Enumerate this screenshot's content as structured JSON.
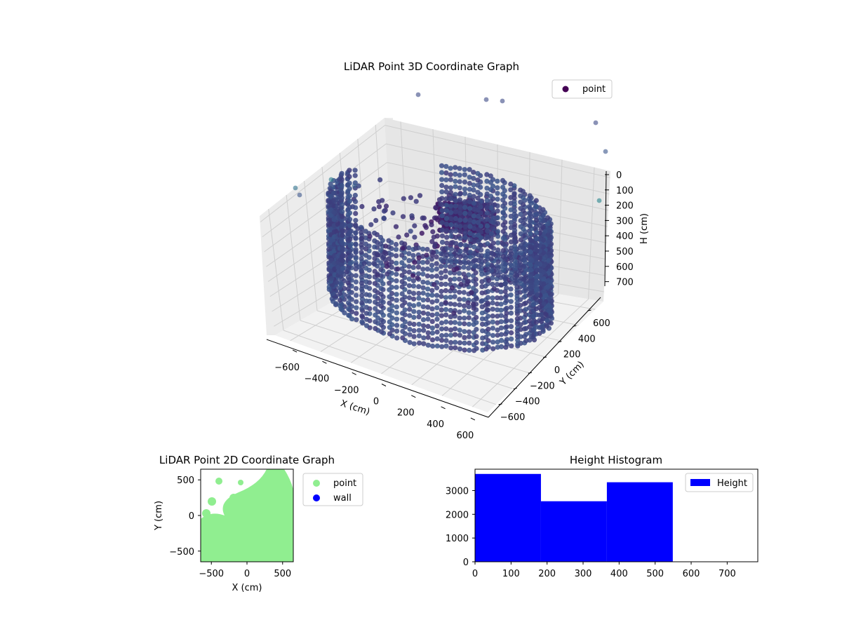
{
  "chart_data": [
    {
      "type": "scatter3d",
      "title": "LiDAR Point 3D Coordinate Graph",
      "xlabel": "X (cm)",
      "ylabel": "Y (cm)",
      "zlabel": "H (cm)",
      "xticks": [
        "−600",
        "−400",
        "−200",
        "0",
        "200",
        "400",
        "600"
      ],
      "yticks": [
        "600",
        "400",
        "200",
        "0",
        "−200",
        "−400",
        "−600"
      ],
      "zticks": [
        "0",
        "100",
        "200",
        "300",
        "400",
        "500",
        "600",
        "700"
      ],
      "xlim": [
        -650,
        650
      ],
      "ylim": [
        -650,
        650
      ],
      "zlim": [
        0,
        750
      ],
      "z_inverted": true,
      "legend": "upper right",
      "series": [
        {
          "name": "point",
          "color": "#440154"
        }
      ],
      "colormap": "viridis",
      "grid": true,
      "description_of_points": "dense ring of points around perimeter (radius ~550-600 cm, heights 0-550 cm), central cluster near X 0..200, Y 0..200, plus sparse outliers near top"
    },
    {
      "type": "scatter",
      "title": "LiDAR Point 2D Coordinate Graph",
      "xlabel": "X (cm)",
      "ylabel": "Y (cm)",
      "xticks": [
        "−500",
        "0",
        "500"
      ],
      "yticks": [
        "500",
        "0",
        "−500"
      ],
      "xlim": [
        -650,
        650
      ],
      "ylim": [
        -650,
        650
      ],
      "legend": "outside right",
      "series": [
        {
          "name": "point",
          "color": "#90ee90"
        },
        {
          "name": "wall",
          "color": "#0000ff"
        }
      ]
    },
    {
      "type": "bar",
      "title": "Height Histogram",
      "xlabel": "",
      "ylabel": "",
      "bin_edges": [
        0,
        183,
        366,
        549
      ],
      "values": [
        3700,
        2550,
        3350
      ],
      "xticks": [
        "0",
        "100",
        "200",
        "300",
        "400",
        "500",
        "600",
        "700"
      ],
      "yticks": [
        "0",
        "1000",
        "2000",
        "3000"
      ],
      "xlim": [
        0,
        785
      ],
      "ylim": [
        0,
        3900
      ],
      "legend": "upper right",
      "series": [
        {
          "name": "Height",
          "color": "#0000ff"
        }
      ]
    }
  ]
}
